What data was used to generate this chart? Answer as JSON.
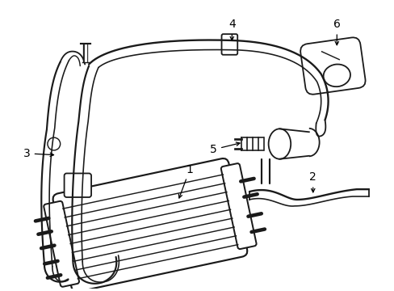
{
  "background_color": "#ffffff",
  "line_color": "#1a1a1a",
  "line_width": 1.3,
  "figsize": [
    4.89,
    3.6
  ],
  "dpi": 100
}
